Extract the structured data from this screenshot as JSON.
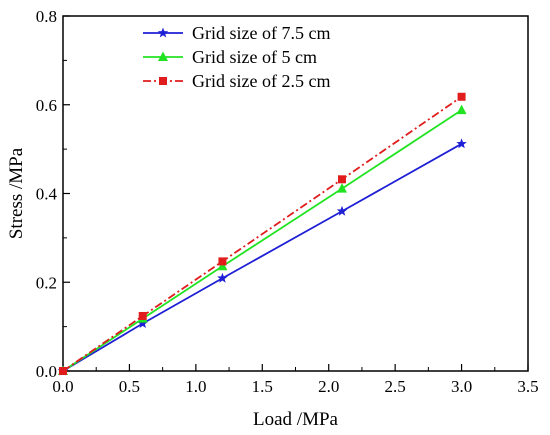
{
  "chart_data": {
    "type": "line",
    "xlabel": "Load /MPa",
    "ylabel": "Stress /MPa",
    "xlim": [
      0.0,
      3.5
    ],
    "ylim": [
      0.0,
      0.8
    ],
    "x_ticks": [
      "0.0",
      "0.5",
      "1.0",
      "1.5",
      "2.0",
      "2.5",
      "3.0",
      "3.5"
    ],
    "y_ticks": [
      "0.0",
      "0.2",
      "0.4",
      "0.6",
      "0.8"
    ],
    "grid": false,
    "legend_position": "top-left",
    "series": [
      {
        "name": "Grid size of 7.5 cm",
        "color": "#1f1fd6",
        "marker": "star",
        "line_style": "solid",
        "x": [
          0.0,
          0.6,
          1.2,
          2.1,
          3.0
        ],
        "y": [
          0.0,
          0.107,
          0.209,
          0.36,
          0.512
        ]
      },
      {
        "name": "Grid size of 5 cm",
        "color": "#22e322",
        "marker": "triangle",
        "line_style": "solid",
        "x": [
          0.0,
          0.6,
          1.2,
          2.1,
          3.0
        ],
        "y": [
          0.0,
          0.118,
          0.236,
          0.411,
          0.588
        ]
      },
      {
        "name": "Grid size of 2.5 cm",
        "color": "#e01c1c",
        "marker": "square",
        "line_style": "dash-dot",
        "x": [
          0.0,
          0.6,
          1.2,
          2.1,
          3.0
        ],
        "y": [
          0.0,
          0.124,
          0.247,
          0.432,
          0.618
        ]
      }
    ]
  }
}
